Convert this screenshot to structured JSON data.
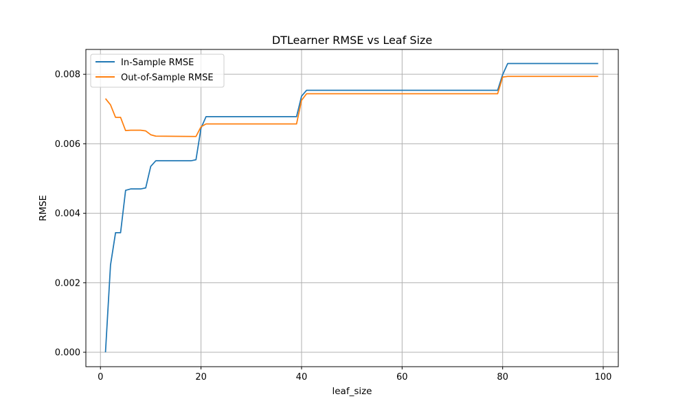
{
  "chart_data": {
    "type": "line",
    "title": "DTLearner RMSE vs Leaf Size",
    "xlabel": "leaf_size",
    "ylabel": "RMSE",
    "xlim": [
      -2.9,
      103
    ],
    "ylim": [
      -0.000415,
      0.008715
    ],
    "xticks": [
      0,
      20,
      40,
      60,
      80,
      100
    ],
    "yticks": [
      0.0,
      0.002,
      0.004,
      0.006,
      0.008
    ],
    "xtick_labels": [
      "0",
      "20",
      "40",
      "60",
      "80",
      "100"
    ],
    "ytick_labels": [
      "0.000",
      "0.002",
      "0.004",
      "0.006",
      "0.008"
    ],
    "grid": true,
    "legend_position": "upper-left",
    "series": [
      {
        "name": "In-Sample RMSE",
        "color": "#1f77b4",
        "points": [
          [
            1,
            0.0
          ],
          [
            2,
            0.00251
          ],
          [
            3,
            0.00344
          ],
          [
            4,
            0.00344
          ],
          [
            5,
            0.00466
          ],
          [
            6,
            0.0047
          ],
          [
            7,
            0.0047
          ],
          [
            8,
            0.0047
          ],
          [
            9,
            0.00473
          ],
          [
            10,
            0.00535
          ],
          [
            11,
            0.00551
          ],
          [
            12,
            0.00551
          ],
          [
            18,
            0.00551
          ],
          [
            19,
            0.00554
          ],
          [
            20,
            0.00645
          ],
          [
            21,
            0.00678
          ],
          [
            39,
            0.00678
          ],
          [
            40,
            0.00737
          ],
          [
            41,
            0.00754
          ],
          [
            79,
            0.00754
          ],
          [
            80,
            0.00799
          ],
          [
            81,
            0.00831
          ],
          [
            99,
            0.00831
          ]
        ]
      },
      {
        "name": "Out-of-Sample RMSE",
        "color": "#ff7f0e",
        "points": [
          [
            1,
            0.0073
          ],
          [
            2,
            0.00712
          ],
          [
            3,
            0.00676
          ],
          [
            4,
            0.00676
          ],
          [
            5,
            0.00638
          ],
          [
            6,
            0.00639
          ],
          [
            7,
            0.00639
          ],
          [
            8,
            0.00639
          ],
          [
            9,
            0.00637
          ],
          [
            10,
            0.00626
          ],
          [
            11,
            0.00622
          ],
          [
            19,
            0.00621
          ],
          [
            20,
            0.00649
          ],
          [
            21,
            0.00657
          ],
          [
            39,
            0.00657
          ],
          [
            40,
            0.00725
          ],
          [
            41,
            0.00744
          ],
          [
            79,
            0.00744
          ],
          [
            80,
            0.00792
          ],
          [
            81,
            0.00794
          ],
          [
            99,
            0.00794
          ]
        ]
      }
    ]
  }
}
